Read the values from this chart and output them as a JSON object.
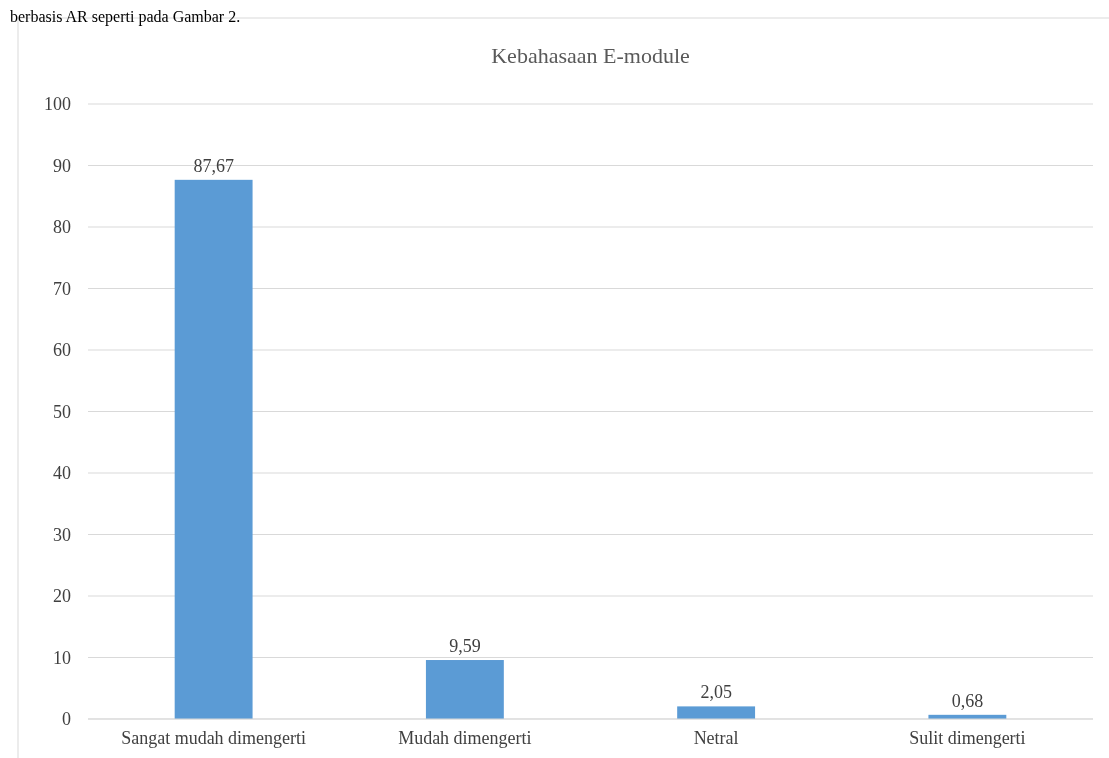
{
  "chart_data": {
    "type": "bar",
    "title": "Kebahasaan E-module",
    "annotations": [
      "berbasis AR seperti pada Gambar 2."
    ],
    "categories": [
      "Sangat mudah dimengerti",
      "Mudah dimengerti",
      "Netral",
      "Sulit dimengerti"
    ],
    "values": [
      87.67,
      9.59,
      2.05,
      0.68
    ],
    "value_labels": [
      "87,67",
      "9,59",
      "2,05",
      "0,68"
    ],
    "color": "#5b9bd5",
    "ylim": [
      0,
      100
    ],
    "yticks": [
      0,
      10,
      20,
      30,
      40,
      50,
      60,
      70,
      80,
      90,
      100
    ],
    "grid": "y"
  }
}
